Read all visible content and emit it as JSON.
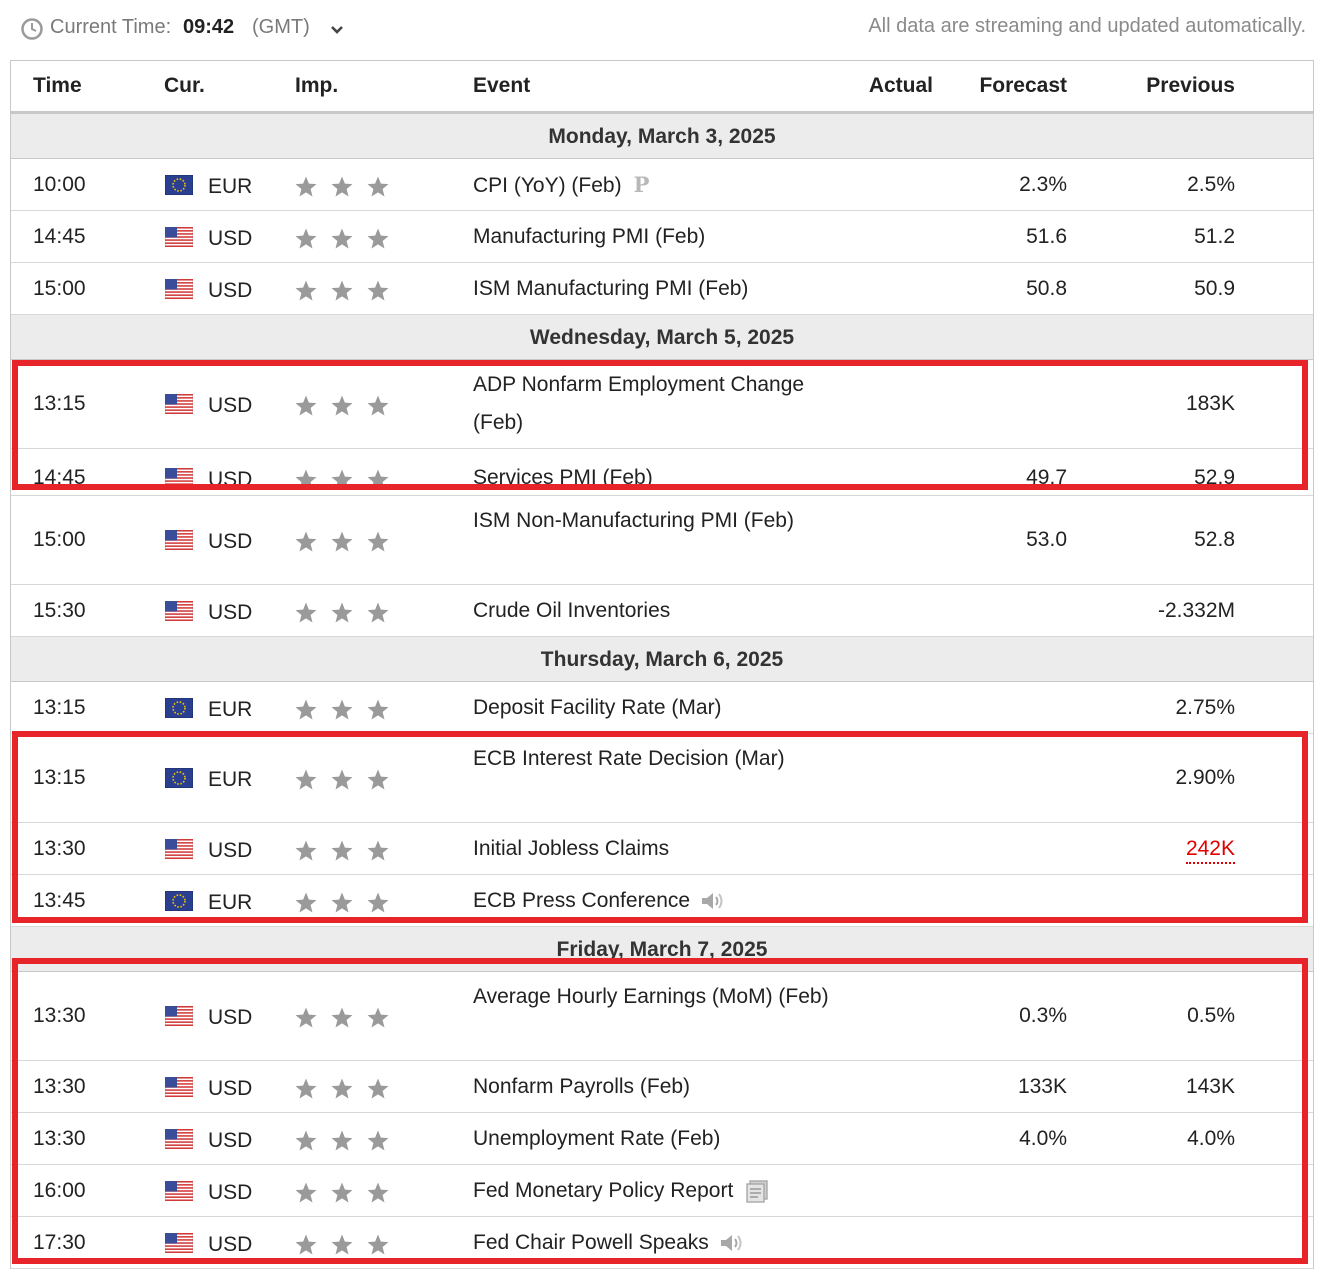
{
  "header": {
    "current_time_label": "Current Time:",
    "current_time": "09:42",
    "timezone": "(GMT)",
    "stream_note": "All data are streaming and updated automatically."
  },
  "columns": {
    "time": "Time",
    "cur": "Cur.",
    "imp": "Imp.",
    "event": "Event",
    "actual": "Actual",
    "forecast": "Forecast",
    "previous": "Previous"
  },
  "days": [
    {
      "label": "Monday, March 3, 2025",
      "rows": [
        {
          "time": "10:00",
          "cur": "EUR",
          "event": "CPI (YoY) (Feb)",
          "actual": "",
          "forecast": "2.3%",
          "previous": "2.5%",
          "icon": "P"
        },
        {
          "time": "14:45",
          "cur": "USD",
          "event": "Manufacturing PMI (Feb)",
          "actual": "",
          "forecast": "51.6",
          "previous": "51.2"
        },
        {
          "time": "15:00",
          "cur": "USD",
          "event": "ISM Manufacturing PMI (Feb)",
          "actual": "",
          "forecast": "50.8",
          "previous": "50.9"
        }
      ]
    },
    {
      "label": "Wednesday, March 5, 2025",
      "rows": [
        {
          "time": "13:15",
          "cur": "USD",
          "event": "ADP Nonfarm Employment Change (Feb)",
          "actual": "",
          "forecast": "",
          "previous": "183K"
        },
        {
          "time": "14:45",
          "cur": "USD",
          "event": "Services PMI (Feb)",
          "actual": "",
          "forecast": "49.7",
          "previous": "52.9"
        },
        {
          "time": "15:00",
          "cur": "USD",
          "event": "ISM Non-Manufacturing PMI (Feb)",
          "actual": "",
          "forecast": "53.0",
          "previous": "52.8"
        },
        {
          "time": "15:30",
          "cur": "USD",
          "event": "Crude Oil Inventories",
          "actual": "",
          "forecast": "",
          "previous": "-2.332M"
        }
      ]
    },
    {
      "label": "Thursday, March 6, 2025",
      "rows": [
        {
          "time": "13:15",
          "cur": "EUR",
          "event": "Deposit Facility Rate (Mar)",
          "actual": "",
          "forecast": "",
          "previous": "2.75%"
        },
        {
          "time": "13:15",
          "cur": "EUR",
          "event": "ECB Interest Rate Decision (Mar)",
          "actual": "",
          "forecast": "",
          "previous": "2.90%"
        },
        {
          "time": "13:30",
          "cur": "USD",
          "event": "Initial Jobless Claims",
          "actual": "",
          "forecast": "",
          "previous": "242K"
        },
        {
          "time": "13:45",
          "cur": "EUR",
          "event": "ECB Press Conference",
          "actual": "",
          "forecast": "",
          "previous": "",
          "icon": "speaker"
        }
      ]
    },
    {
      "label": "Friday, March 7, 2025",
      "rows": [
        {
          "time": "13:30",
          "cur": "USD",
          "event": "Average Hourly Earnings (MoM) (Feb)",
          "actual": "",
          "forecast": "0.3%",
          "previous": "0.5%"
        },
        {
          "time": "13:30",
          "cur": "USD",
          "event": "Nonfarm Payrolls (Feb)",
          "actual": "",
          "forecast": "133K",
          "previous": "143K"
        },
        {
          "time": "13:30",
          "cur": "USD",
          "event": "Unemployment Rate (Feb)",
          "actual": "",
          "forecast": "4.0%",
          "previous": "4.0%"
        },
        {
          "time": "16:00",
          "cur": "USD",
          "event": "Fed Monetary Policy Report",
          "actual": "",
          "forecast": "",
          "previous": "",
          "icon": "document"
        },
        {
          "time": "17:30",
          "cur": "USD",
          "event": "Fed Chair Powell Speaks",
          "actual": "",
          "forecast": "",
          "previous": "",
          "icon": "speaker"
        }
      ]
    }
  ],
  "importance": "3 of 3 stars",
  "colors": {
    "highlight_box": "#e8242b",
    "day_header_bg": "#ececec",
    "worse_value": "#e00000"
  }
}
